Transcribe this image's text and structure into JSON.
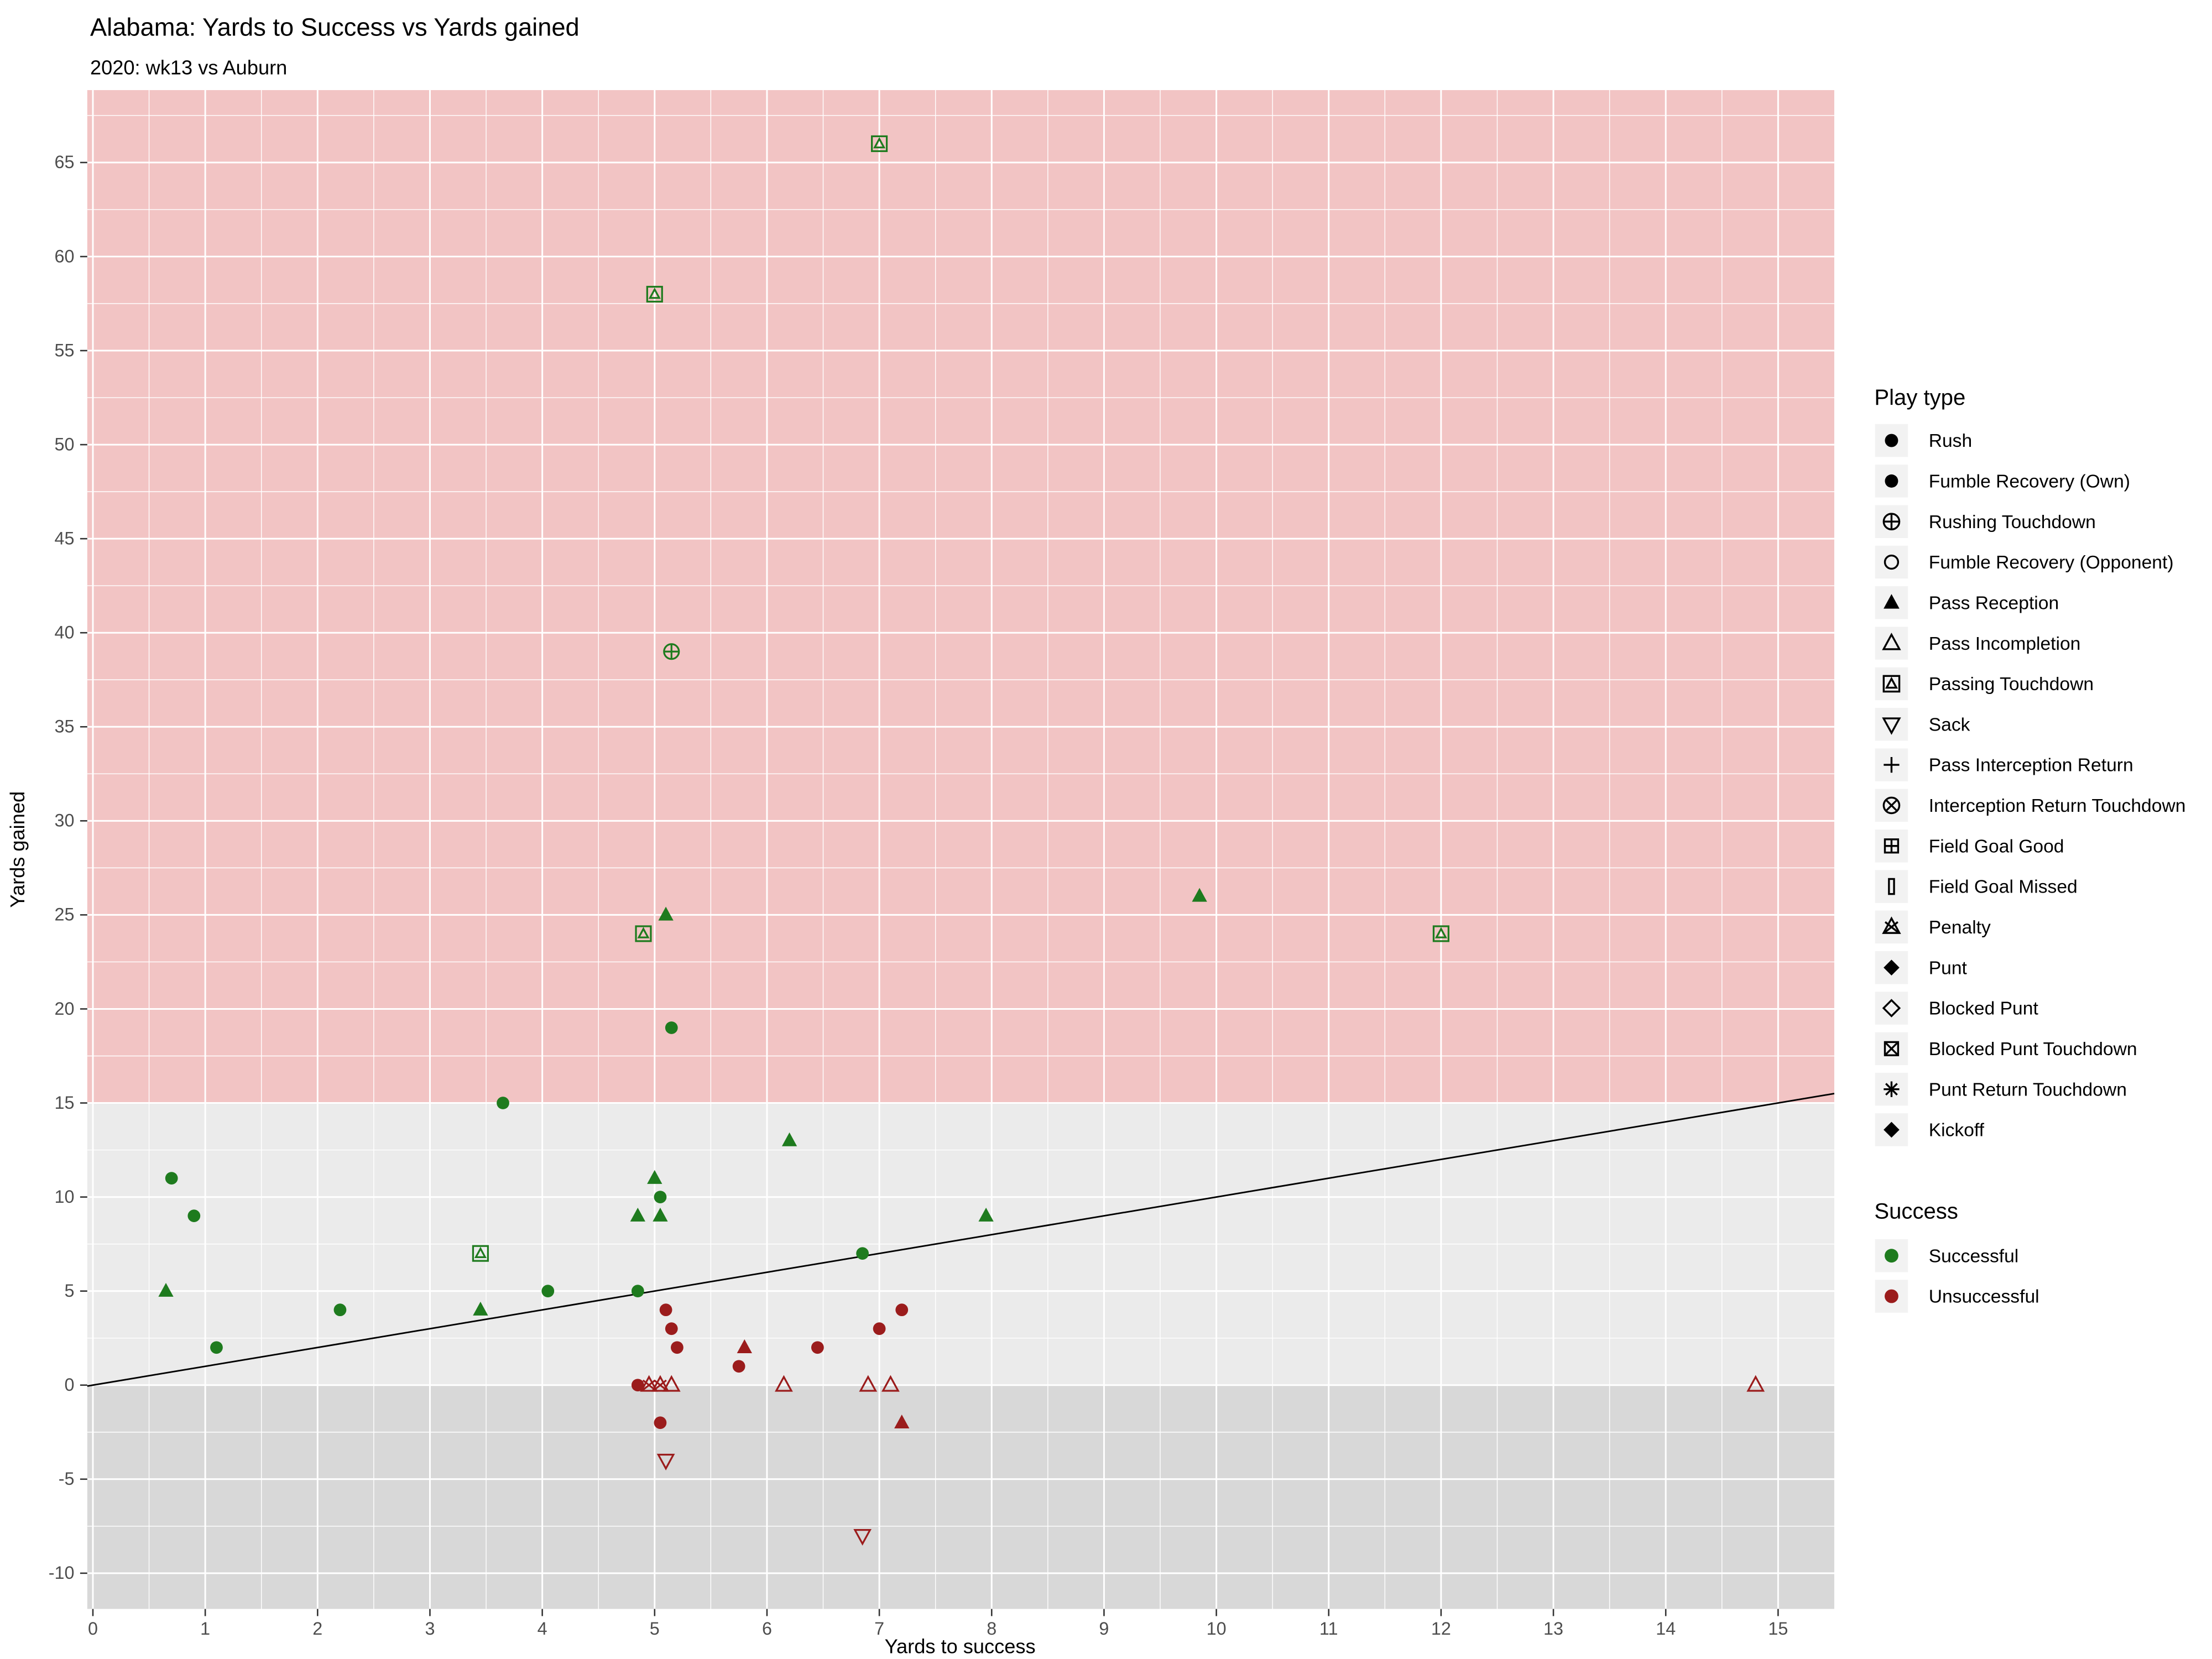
{
  "colors": {
    "successful": "#1e7b1e",
    "unsuccessful": "#9b1c1c",
    "panel_pink": "#f2c4c4",
    "panel_gray": "#ebebeb",
    "panel_dark_gray": "#d8d8d8",
    "grid": "#ffffff",
    "abline": "#000000",
    "tick_text": "#4d4d4d",
    "legend_key_bg": "#f2f2f2"
  },
  "legend": {
    "play_type_title": "Play type",
    "play_types": [
      {
        "label": "Rush",
        "shape": "circle-filled"
      },
      {
        "label": "Fumble Recovery (Own)",
        "shape": "circle-filled"
      },
      {
        "label": "Rushing Touchdown",
        "shape": "circle-plus"
      },
      {
        "label": "Fumble Recovery (Opponent)",
        "shape": "circle-open"
      },
      {
        "label": "Pass Reception",
        "shape": "triangle-filled"
      },
      {
        "label": "Pass Incompletion",
        "shape": "triangle-open"
      },
      {
        "label": "Passing Touchdown",
        "shape": "square-triangle"
      },
      {
        "label": "Sack",
        "shape": "triangle-down-open"
      },
      {
        "label": "Pass Interception Return",
        "shape": "plus"
      },
      {
        "label": "Interception Return Touchdown",
        "shape": "circle-x"
      },
      {
        "label": "Field Goal Good",
        "shape": "square-plus"
      },
      {
        "label": "Field Goal Missed",
        "shape": "bar-open"
      },
      {
        "label": "Penalty",
        "shape": "triangle-x"
      },
      {
        "label": "Punt",
        "shape": "diamond-filled"
      },
      {
        "label": "Blocked Punt",
        "shape": "diamond-open"
      },
      {
        "label": "Blocked Punt Touchdown",
        "shape": "square-x"
      },
      {
        "label": "Punt Return Touchdown",
        "shape": "asterisk"
      },
      {
        "label": "Kickoff",
        "shape": "diamond-filled"
      }
    ],
    "success_title": "Success",
    "success_items": [
      {
        "label": "Successful",
        "color": "#1e7b1e"
      },
      {
        "label": "Unsuccessful",
        "color": "#9b1c1c"
      }
    ]
  },
  "chart_data": {
    "type": "scatter",
    "title": "Alabama: Yards to Success vs Yards gained",
    "subtitle": "2020: wk13 vs Auburn",
    "xlabel": "Yards to success",
    "ylabel": "Yards gained",
    "xlim": [
      -0.05,
      15.5
    ],
    "ylim": [
      -11.9,
      68.85
    ],
    "x_ticks": [
      0,
      1,
      2,
      3,
      4,
      5,
      6,
      7,
      8,
      9,
      10,
      11,
      12,
      13,
      14,
      15
    ],
    "y_ticks": [
      -10,
      -5,
      0,
      5,
      10,
      15,
      20,
      25,
      30,
      35,
      40,
      45,
      50,
      55,
      60,
      65
    ],
    "regions": [
      {
        "name": "above-threshold",
        "from": 15,
        "to": 68.85,
        "color": "#f2c4c4"
      },
      {
        "name": "mid",
        "from": 0,
        "to": 15,
        "color": "#ebebeb"
      },
      {
        "name": "below-zero",
        "from": -11.9,
        "to": 0,
        "color": "#d8d8d8"
      }
    ],
    "ab_line": {
      "slope": 1,
      "intercept": 0
    },
    "points": [
      {
        "x": 0.65,
        "y": 5,
        "play": "Pass Reception",
        "success": true
      },
      {
        "x": 0.7,
        "y": 11,
        "play": "Rush",
        "success": true
      },
      {
        "x": 0.9,
        "y": 9,
        "play": "Rush",
        "success": true
      },
      {
        "x": 1.1,
        "y": 2,
        "play": "Rush",
        "success": true
      },
      {
        "x": 2.2,
        "y": 4,
        "play": "Rush",
        "success": true
      },
      {
        "x": 3.45,
        "y": 4,
        "play": "Pass Reception",
        "success": true
      },
      {
        "x": 3.45,
        "y": 7,
        "play": "Passing Touchdown",
        "success": true
      },
      {
        "x": 3.65,
        "y": 15,
        "play": "Rush",
        "success": true
      },
      {
        "x": 4.05,
        "y": 5,
        "play": "Rush",
        "success": true
      },
      {
        "x": 4.85,
        "y": 5,
        "play": "Rush",
        "success": true
      },
      {
        "x": 4.85,
        "y": 9,
        "play": "Pass Reception",
        "success": true
      },
      {
        "x": 4.9,
        "y": 24,
        "play": "Passing Touchdown",
        "success": true
      },
      {
        "x": 5.0,
        "y": 58,
        "play": "Passing Touchdown",
        "success": true
      },
      {
        "x": 5.0,
        "y": 11,
        "play": "Pass Reception",
        "success": true
      },
      {
        "x": 5.05,
        "y": 9,
        "play": "Pass Reception",
        "success": true
      },
      {
        "x": 5.05,
        "y": 10,
        "play": "Rush",
        "success": true
      },
      {
        "x": 5.1,
        "y": 25,
        "play": "Pass Reception",
        "success": true
      },
      {
        "x": 5.15,
        "y": 39,
        "play": "Rushing Touchdown",
        "success": true
      },
      {
        "x": 5.15,
        "y": 19,
        "play": "Rush",
        "success": true
      },
      {
        "x": 6.2,
        "y": 13,
        "play": "Pass Reception",
        "success": true
      },
      {
        "x": 6.85,
        "y": 7,
        "play": "Rush",
        "success": true
      },
      {
        "x": 7.0,
        "y": 66,
        "play": "Passing Touchdown",
        "success": true
      },
      {
        "x": 7.95,
        "y": 9,
        "play": "Pass Reception",
        "success": true
      },
      {
        "x": 9.85,
        "y": 26,
        "play": "Pass Reception",
        "success": true
      },
      {
        "x": 12.0,
        "y": 24,
        "play": "Passing Touchdown",
        "success": true
      },
      {
        "x": 4.85,
        "y": 0,
        "play": "Rush",
        "success": false
      },
      {
        "x": 4.95,
        "y": 0,
        "play": "Penalty",
        "success": false
      },
      {
        "x": 5.05,
        "y": 0,
        "play": "Penalty",
        "success": false
      },
      {
        "x": 5.15,
        "y": 0,
        "play": "Pass Incompletion",
        "success": false
      },
      {
        "x": 5.05,
        "y": -2,
        "play": "Rush",
        "success": false
      },
      {
        "x": 5.1,
        "y": -4,
        "play": "Sack",
        "success": false
      },
      {
        "x": 5.1,
        "y": 4,
        "play": "Rush",
        "success": false
      },
      {
        "x": 5.15,
        "y": 3,
        "play": "Rush",
        "success": false
      },
      {
        "x": 5.2,
        "y": 2,
        "play": "Rush",
        "success": false
      },
      {
        "x": 5.75,
        "y": 1,
        "play": "Rush",
        "success": false
      },
      {
        "x": 5.8,
        "y": 2,
        "play": "Pass Reception",
        "success": false
      },
      {
        "x": 6.15,
        "y": 0,
        "play": "Pass Incompletion",
        "success": false
      },
      {
        "x": 6.45,
        "y": 2,
        "play": "Rush",
        "success": false
      },
      {
        "x": 6.85,
        "y": -8,
        "play": "Sack",
        "success": false
      },
      {
        "x": 6.9,
        "y": 0,
        "play": "Pass Incompletion",
        "success": false
      },
      {
        "x": 7.0,
        "y": 3,
        "play": "Rush",
        "success": false
      },
      {
        "x": 7.1,
        "y": 0,
        "play": "Pass Incompletion",
        "success": false
      },
      {
        "x": 7.2,
        "y": 4,
        "play": "Rush",
        "success": false
      },
      {
        "x": 7.2,
        "y": -2,
        "play": "Pass Reception",
        "success": false
      },
      {
        "x": 14.8,
        "y": 0,
        "play": "Pass Incompletion",
        "success": false
      }
    ]
  }
}
